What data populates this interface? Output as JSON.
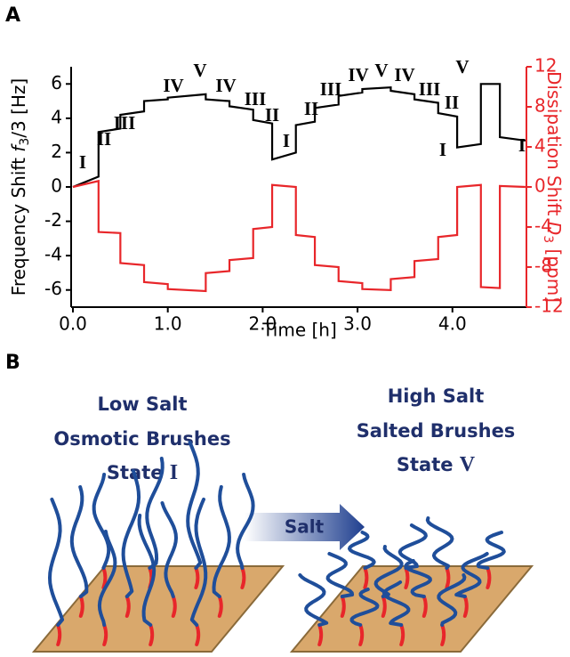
{
  "chart_data": {
    "type": "line",
    "panel_label": "A",
    "xlabel": "Time [h]",
    "ylabel": [
      "Frequency Shift ",
      "f",
      "3",
      "/3 [Hz]"
    ],
    "y2label": [
      "Dissipation Shift ",
      "D",
      "3",
      " [ppm]"
    ],
    "x": [
      0,
      0.27,
      0.27,
      0.5,
      0.5,
      0.75,
      0.75,
      1.0,
      1.0,
      1.4,
      1.4,
      1.65,
      1.65,
      1.9,
      1.9,
      2.1,
      2.1,
      2.35,
      2.35,
      2.55,
      2.55,
      2.8,
      2.8,
      3.05,
      3.05,
      3.35,
      3.35,
      3.6,
      3.6,
      3.85,
      3.85,
      4.05,
      4.05,
      4.3,
      4.3,
      4.5,
      4.5,
      4.77
    ],
    "series": [
      {
        "name": "Frequency Shift",
        "color": "#000000",
        "axis": "y",
        "values": [
          0,
          0.6,
          3.2,
          3.4,
          4.2,
          4.4,
          5.0,
          5.1,
          5.2,
          5.4,
          5.1,
          5.0,
          4.7,
          4.5,
          3.9,
          3.7,
          1.6,
          2.0,
          3.6,
          3.8,
          4.6,
          4.8,
          5.3,
          5.5,
          5.7,
          5.8,
          5.6,
          5.4,
          5.1,
          4.9,
          4.3,
          4.1,
          2.3,
          2.5,
          6.0,
          6.0,
          2.9,
          2.7
        ]
      },
      {
        "name": "Dissipation Shift",
        "color": "#e8262a",
        "axis": "y2",
        "values": [
          0,
          0.6,
          -4.5,
          -4.6,
          -7.6,
          -7.8,
          -9.5,
          -9.7,
          -10.2,
          -10.4,
          -8.6,
          -8.4,
          -7.3,
          -7.1,
          -4.2,
          -4.0,
          0.2,
          0,
          -4.8,
          -5.0,
          -7.8,
          -8.0,
          -9.4,
          -9.6,
          -10.2,
          -10.3,
          -9.2,
          -9.0,
          -7.4,
          -7.2,
          -5.0,
          -4.8,
          0,
          0.2,
          -10.0,
          -10.1,
          0.1,
          0
        ]
      }
    ],
    "xlim": [
      0,
      4.78
    ],
    "xticks": [
      {
        "value": 0,
        "label": "0.0"
      },
      {
        "value": 1,
        "label": "1.0"
      },
      {
        "value": 2,
        "label": "2.0"
      },
      {
        "value": 3,
        "label": "3.0"
      },
      {
        "value": 4,
        "label": "4.0"
      }
    ],
    "ylim": [
      -7,
      7
    ],
    "yticks": [
      -6,
      -4,
      -2,
      0,
      2,
      4,
      6
    ],
    "y2lim": [
      -12,
      12
    ],
    "y2ticks": [
      -12,
      -8,
      -4,
      0,
      4,
      8,
      12
    ],
    "y2color": "#e8262a",
    "annotations": [
      "I",
      "II",
      "III",
      "IV",
      "V",
      "IV",
      "III",
      "II",
      "I",
      "II",
      "III",
      "IV",
      "V",
      "IV",
      "III",
      "II",
      "I",
      "V",
      "I"
    ]
  },
  "diagram": {
    "panel_label": "B",
    "left": {
      "lines": [
        "Low Salt",
        "Osmotic Brushes"
      ],
      "state": [
        "State ",
        "I"
      ]
    },
    "right": {
      "lines": [
        "High Salt",
        "Salted Brushes"
      ],
      "state": [
        "State ",
        "V"
      ]
    },
    "arrow_label": "Salt"
  }
}
